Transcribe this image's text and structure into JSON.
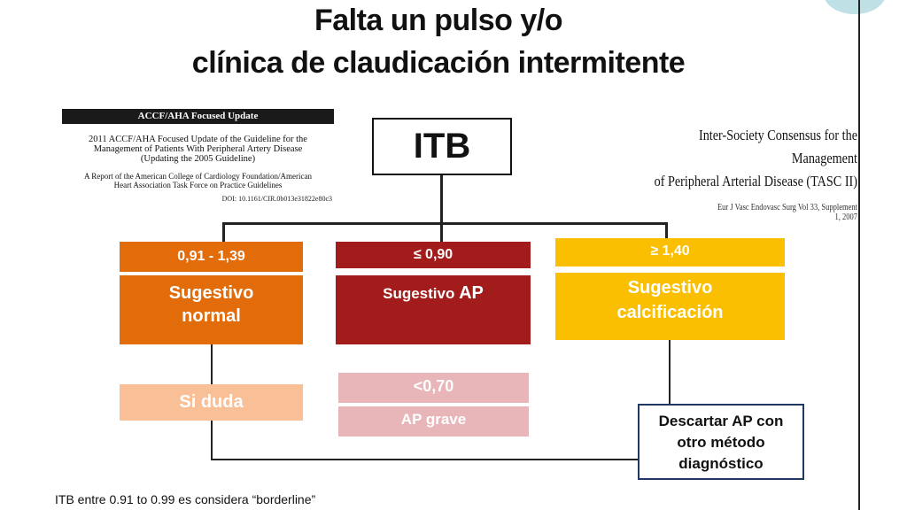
{
  "title": {
    "line1": "Falta un pulso y/o",
    "line2": "clínica de claudicación intermitente"
  },
  "reference_left": {
    "header": "ACCF/AHA Focused Update",
    "line1": "2011 ACCF/AHA Focused Update of the Guideline for the",
    "line2": "Management of Patients With Peripheral Artery Disease",
    "line3": "(Updating the 2005 Guideline)",
    "sub1": "A Report of the American College of Cardiology Foundation/American",
    "sub2": "Heart Association Task Force on Practice Guidelines",
    "doi": "DOI: 10.1161/CIR.0b013e31822e80c3"
  },
  "reference_right": {
    "title1": "Inter-Society Consensus for the Management",
    "title2": "of Peripheral Arterial Disease (TASC II)",
    "citation": "Eur J Vasc Endovasc Surg Vol 33, Supplement 1, 2007"
  },
  "root": {
    "label": "ITB"
  },
  "branches": {
    "normal": {
      "range": "0,91  - 1,39",
      "line1": "Sugestivo",
      "line2": "normal",
      "color": "#e36c0a"
    },
    "ap": {
      "range": "≤ 0,90",
      "text": "Sugestivo ",
      "text_big": "AP",
      "color": "#a31c1c"
    },
    "calcification": {
      "range": "≥  1,40",
      "line1": "Sugestivo",
      "line2": "calcificación",
      "color": "#f9bf00"
    }
  },
  "doubt": {
    "label": "Si duda",
    "color": "#f9bf96"
  },
  "severe": {
    "threshold": "<0,70",
    "label": "AP grave",
    "color": "#e8b5b8"
  },
  "exclude": {
    "line1": "Descartar AP con",
    "line2": "otro método",
    "line3": "diagnóstico",
    "border_color": "#1f3864"
  },
  "footnote": "ITB entre 0.91 to 0.99 es considera “borderline”"
}
